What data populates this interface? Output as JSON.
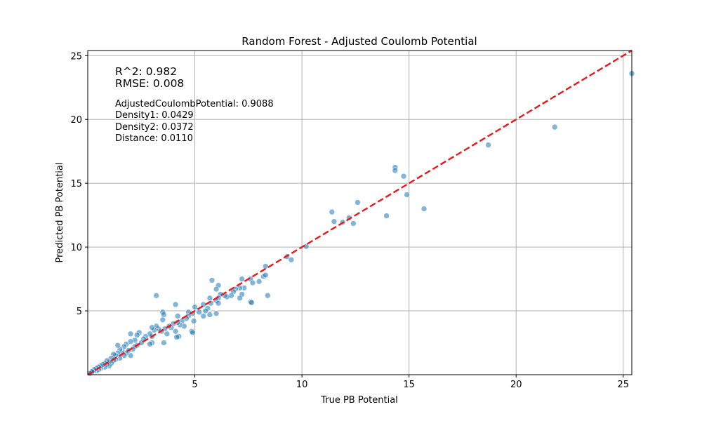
{
  "chart_data": {
    "type": "scatter",
    "title": "Random Forest - Adjusted Coulomb Potential",
    "xlabel": "True PB Potential",
    "ylabel": "Predicted PB Potential",
    "xlim": [
      0,
      25.4
    ],
    "ylim": [
      0,
      25.4
    ],
    "xticks": [
      5,
      10,
      15,
      20,
      25
    ],
    "yticks": [
      5,
      10,
      15,
      20,
      25
    ],
    "grid": true,
    "point_color": "#1f77b4",
    "reference_line": {
      "from": [
        0,
        0
      ],
      "to": [
        25.4,
        25.4
      ],
      "color": "#e41a1c",
      "style": "dashed"
    },
    "annotations": {
      "metrics": [
        "R^2: 0.982",
        "RMSE: 0.008"
      ],
      "importances": [
        "AdjustedCoulombPotential: 0.9088",
        "Density1: 0.0429",
        "Density2: 0.0372",
        "Distance: 0.0110"
      ]
    },
    "points": [
      [
        25.4,
        23.6
      ],
      [
        21.8,
        19.4
      ],
      [
        18.7,
        18.0
      ],
      [
        15.7,
        13.0
      ],
      [
        14.9,
        14.1
      ],
      [
        14.75,
        15.55
      ],
      [
        14.35,
        16.25
      ],
      [
        14.35,
        16.0
      ],
      [
        13.95,
        12.45
      ],
      [
        12.6,
        13.5
      ],
      [
        12.4,
        11.85
      ],
      [
        12.2,
        12.3
      ],
      [
        11.9,
        11.95
      ],
      [
        11.5,
        12.0
      ],
      [
        11.4,
        12.75
      ],
      [
        10.2,
        10.05
      ],
      [
        9.3,
        9.25
      ],
      [
        9.5,
        9.0
      ],
      [
        8.3,
        8.5
      ],
      [
        8.2,
        7.7
      ],
      [
        8.3,
        7.8
      ],
      [
        8.4,
        6.2
      ],
      [
        8.0,
        7.3
      ],
      [
        7.6,
        7.5
      ],
      [
        7.7,
        7.2
      ],
      [
        7.6,
        5.7
      ],
      [
        7.65,
        5.65
      ],
      [
        7.2,
        7.5
      ],
      [
        7.3,
        6.8
      ],
      [
        7.1,
        6.8
      ],
      [
        7.2,
        6.3
      ],
      [
        7.1,
        6.0
      ],
      [
        6.9,
        6.7
      ],
      [
        6.8,
        6.5
      ],
      [
        6.7,
        6.2
      ],
      [
        6.5,
        6.1
      ],
      [
        6.4,
        6.2
      ],
      [
        6.2,
        6.3
      ],
      [
        6.1,
        7.0
      ],
      [
        6.0,
        6.7
      ],
      [
        6.1,
        6.0
      ],
      [
        6.0,
        5.8
      ],
      [
        6.1,
        5.6
      ],
      [
        6.0,
        4.8
      ],
      [
        5.8,
        7.4
      ],
      [
        5.7,
        6.0
      ],
      [
        5.75,
        5.6
      ],
      [
        5.6,
        5.2
      ],
      [
        5.7,
        4.7
      ],
      [
        5.5,
        5.0
      ],
      [
        5.4,
        5.5
      ],
      [
        5.4,
        4.6
      ],
      [
        5.2,
        4.9
      ],
      [
        5.0,
        5.3
      ],
      [
        4.9,
        4.8
      ],
      [
        4.95,
        4.2
      ],
      [
        4.85,
        3.4
      ],
      [
        4.9,
        3.3
      ],
      [
        4.7,
        4.9
      ],
      [
        4.7,
        4.6
      ],
      [
        4.6,
        4.4
      ],
      [
        4.5,
        3.8
      ],
      [
        4.4,
        4.2
      ],
      [
        4.3,
        3.9
      ],
      [
        4.2,
        4.6
      ],
      [
        4.2,
        4.1
      ],
      [
        4.1,
        5.5
      ],
      [
        4.0,
        4.0
      ],
      [
        4.1,
        3.4
      ],
      [
        4.25,
        3.0
      ],
      [
        4.15,
        2.95
      ],
      [
        3.9,
        3.7
      ],
      [
        3.8,
        3.8
      ],
      [
        3.7,
        3.2
      ],
      [
        3.6,
        3.6
      ],
      [
        3.5,
        4.9
      ],
      [
        3.55,
        4.7
      ],
      [
        3.5,
        4.3
      ],
      [
        3.45,
        3.4
      ],
      [
        3.55,
        2.5
      ],
      [
        3.3,
        3.6
      ],
      [
        3.2,
        6.2
      ],
      [
        3.2,
        3.8
      ],
      [
        3.1,
        3.5
      ],
      [
        3.0,
        3.7
      ],
      [
        3.0,
        3.0
      ],
      [
        2.9,
        3.2
      ],
      [
        3.0,
        2.5
      ],
      [
        2.9,
        2.4
      ],
      [
        2.7,
        3.0
      ],
      [
        2.6,
        2.8
      ],
      [
        2.5,
        2.5
      ],
      [
        2.4,
        3.3
      ],
      [
        2.3,
        3.1
      ],
      [
        2.3,
        2.3
      ],
      [
        2.2,
        2.7
      ],
      [
        2.2,
        2.2
      ],
      [
        2.1,
        2.0
      ],
      [
        2.0,
        3.2
      ],
      [
        2.0,
        2.6
      ],
      [
        2.0,
        1.5
      ],
      [
        1.9,
        1.9
      ],
      [
        1.8,
        2.4
      ],
      [
        1.8,
        1.7
      ],
      [
        1.7,
        2.2
      ],
      [
        1.7,
        1.5
      ],
      [
        1.6,
        1.8
      ],
      [
        1.5,
        1.3
      ],
      [
        1.5,
        2.0
      ],
      [
        1.4,
        2.3
      ],
      [
        1.4,
        1.7
      ],
      [
        1.3,
        1.2
      ],
      [
        1.3,
        1.5
      ],
      [
        1.2,
        1.6
      ],
      [
        1.2,
        1.1
      ],
      [
        1.1,
        1.3
      ],
      [
        1.1,
        0.9
      ],
      [
        1.0,
        1.0
      ],
      [
        1.0,
        0.7
      ],
      [
        0.9,
        1.1
      ],
      [
        0.9,
        0.8
      ],
      [
        0.8,
        0.9
      ],
      [
        0.8,
        0.6
      ],
      [
        0.7,
        0.8
      ],
      [
        0.6,
        0.5
      ],
      [
        0.6,
        0.7
      ],
      [
        0.5,
        0.6
      ],
      [
        0.5,
        0.4
      ],
      [
        0.4,
        0.5
      ],
      [
        0.4,
        0.3
      ],
      [
        0.3,
        0.3
      ],
      [
        0.3,
        0.4
      ],
      [
        0.2,
        0.2
      ],
      [
        0.2,
        0.25
      ],
      [
        0.1,
        0.1
      ]
    ]
  }
}
